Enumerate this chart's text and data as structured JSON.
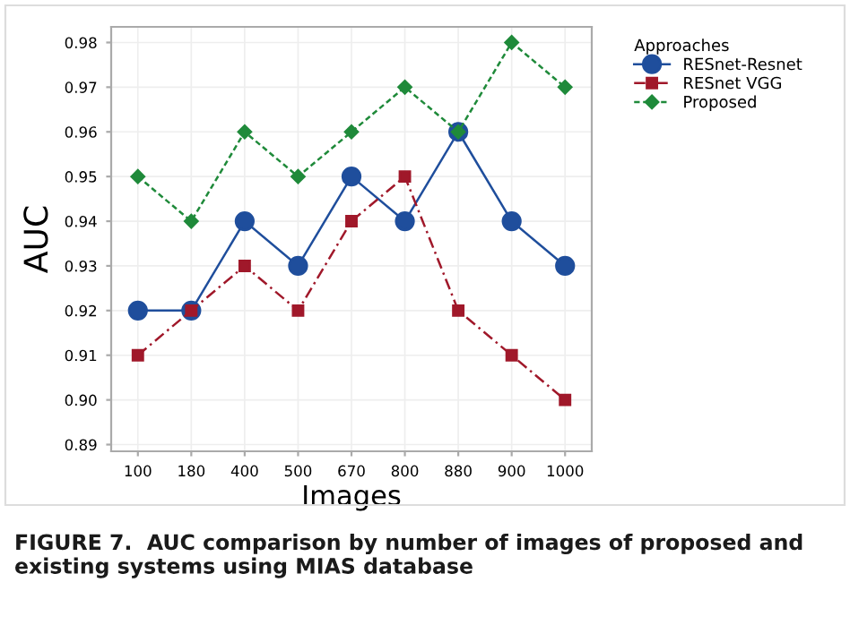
{
  "chart_data": {
    "type": "line",
    "xlabel": "Images",
    "ylabel": "AUC",
    "legend_title": "Approaches",
    "categories": [
      "100",
      "180",
      "400",
      "500",
      "670",
      "800",
      "880",
      "900",
      "1000"
    ],
    "series": [
      {
        "name": "RESnet-Resnet",
        "color": "#1f4e9c",
        "marker": "circle",
        "line_style": "solid",
        "values": [
          0.92,
          0.92,
          0.94,
          0.93,
          0.95,
          0.94,
          0.96,
          0.94,
          0.93
        ]
      },
      {
        "name": "RESnet VGG",
        "color": "#a0182a",
        "marker": "square",
        "line_style": "dashed",
        "values": [
          0.91,
          0.92,
          0.93,
          0.92,
          0.94,
          0.95,
          0.92,
          0.91,
          0.9
        ]
      },
      {
        "name": "Proposed",
        "color": "#1f8a3a",
        "marker": "diamond",
        "line_style": "dotted",
        "values": [
          0.95,
          0.94,
          0.96,
          0.95,
          0.96,
          0.97,
          0.96,
          0.98,
          0.97
        ]
      }
    ],
    "ylim": [
      0.8885,
      0.9835
    ],
    "yticks": [
      {
        "value": 0.89,
        "label": "0.89"
      },
      {
        "value": 0.9,
        "label": "0.90"
      },
      0.91,
      0.92,
      0.93,
      0.94,
      0.95,
      0.96,
      0.97,
      0.98
    ],
    "grid": true,
    "legend": "top right",
    "annotations": [
      "FIGURE 7.  AUC comparison by number of images of proposed and existing systems using MIAS database"
    ]
  }
}
